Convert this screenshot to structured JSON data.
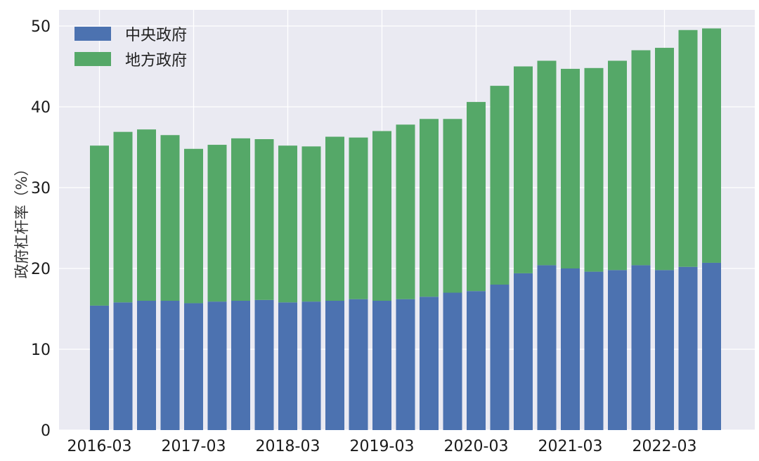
{
  "chart_data": {
    "type": "bar",
    "stacked": true,
    "title": "",
    "xlabel": "",
    "ylabel": "政府杠杆率（%）",
    "ylim": [
      0,
      52
    ],
    "yticks": [
      0,
      10,
      20,
      30,
      40,
      50
    ],
    "grid": true,
    "legend_position": "top-left",
    "categories": [
      "2016-03",
      "2016-06",
      "2016-09",
      "2016-12",
      "2017-03",
      "2017-06",
      "2017-09",
      "2017-12",
      "2018-03",
      "2018-06",
      "2018-09",
      "2018-12",
      "2019-03",
      "2019-06",
      "2019-09",
      "2019-12",
      "2020-03",
      "2020-06",
      "2020-09",
      "2020-12",
      "2021-03",
      "2021-06",
      "2021-09",
      "2021-12",
      "2022-03",
      "2022-06",
      "2022-09"
    ],
    "xtick_labels": [
      "2016-03",
      "2017-03",
      "2018-03",
      "2019-03",
      "2020-03",
      "2021-03",
      "2022-03"
    ],
    "series": [
      {
        "name": "中央政府",
        "color": "#4c72b0",
        "values": [
          15.4,
          15.8,
          16.0,
          16.0,
          15.7,
          15.9,
          16.0,
          16.1,
          15.8,
          15.9,
          16.0,
          16.2,
          16.0,
          16.2,
          16.5,
          17.0,
          17.2,
          18.0,
          19.4,
          20.4,
          20.0,
          19.6,
          19.8,
          20.4,
          19.8,
          20.2,
          20.7
        ]
      },
      {
        "name": "地方政府",
        "color": "#55a868",
        "values": [
          19.8,
          21.1,
          21.2,
          20.5,
          19.1,
          19.4,
          20.1,
          19.9,
          19.4,
          19.2,
          20.3,
          20.0,
          21.0,
          21.6,
          22.0,
          21.5,
          23.4,
          24.6,
          25.6,
          25.3,
          24.7,
          25.2,
          25.9,
          26.6,
          27.5,
          29.3,
          29.0
        ]
      }
    ]
  }
}
